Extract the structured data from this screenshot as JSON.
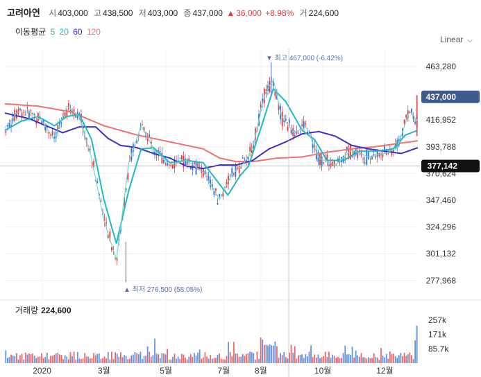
{
  "header": {
    "name": "고려아연",
    "open_label": "시",
    "open": "403,000",
    "high_label": "고",
    "high": "438,500",
    "low_label": "저",
    "low": "403,000",
    "close_label": "종",
    "close": "437,000",
    "change_arrow": "▲",
    "change": "36,000",
    "change_pct": "+8.98%",
    "volume_label": "거",
    "volume": "224,600"
  },
  "moving_average": {
    "label": "이동평균",
    "periods": [
      {
        "value": "5",
        "color": "#1fb8c4"
      },
      {
        "value": "20",
        "color": "#1fb8c4"
      },
      {
        "value": "60",
        "color": "#3b2fc4"
      },
      {
        "value": "120",
        "color": "#f07070"
      }
    ]
  },
  "scale_button": {
    "label": "Linear",
    "icon": "chevron-down-icon"
  },
  "colors": {
    "up": "#e0393e",
    "down": "#2f6fd8",
    "ma5": "#7fd6c9",
    "ma20": "#1fb8c4",
    "ma60": "#3b2fc4",
    "ma120": "#f07070",
    "price_tag": "#3f5a8c"
  },
  "chart_data": {
    "type": "candlestick",
    "y_ticks": [
      "463,280",
      "416,952",
      "393,788",
      "370,624",
      "347,460",
      "324,296",
      "301,132",
      "277,968"
    ],
    "y_tick_values": [
      463280,
      416952,
      393788,
      370624,
      347460,
      324296,
      301132,
      277968
    ],
    "x_labels": [
      "2020",
      "3월",
      "5월",
      "7월",
      "8월",
      "10월",
      "12월"
    ],
    "last_price_tag": "437,000",
    "crosshair_tag": "377,142",
    "annotations": {
      "high": "▼ 최고 467,000 (-6.42%)",
      "low": "▲ 최저 276,500 (58.05%)"
    },
    "high_value": 467000,
    "low_value": 276500,
    "crosshair_value": 377142,
    "last_value": 437000,
    "volume": {
      "title": "거래량",
      "value": "224,600",
      "y_ticks": [
        "257k",
        "171k",
        "85.7k"
      ],
      "y_tick_values": [
        257000,
        171000,
        85700
      ]
    },
    "ma120_approx": [
      [
        0,
        431
      ],
      [
        0.08,
        429
      ],
      [
        0.16,
        424
      ],
      [
        0.24,
        412
      ],
      [
        0.32,
        404
      ],
      [
        0.4,
        398
      ],
      [
        0.48,
        392
      ],
      [
        0.52,
        384
      ],
      [
        0.56,
        381
      ],
      [
        0.6,
        381
      ],
      [
        0.66,
        384
      ],
      [
        0.72,
        385
      ],
      [
        0.78,
        389
      ],
      [
        0.84,
        392
      ],
      [
        0.9,
        394
      ],
      [
        0.96,
        397
      ],
      [
        1.0,
        399
      ]
    ],
    "ma60_approx": [
      [
        0,
        423
      ],
      [
        0.06,
        418
      ],
      [
        0.1,
        412
      ],
      [
        0.14,
        406
      ],
      [
        0.18,
        411
      ],
      [
        0.22,
        411
      ],
      [
        0.25,
        401
      ],
      [
        0.28,
        395
      ],
      [
        0.32,
        393
      ],
      [
        0.36,
        388
      ],
      [
        0.4,
        384
      ],
      [
        0.44,
        377
      ],
      [
        0.48,
        375
      ],
      [
        0.52,
        378
      ],
      [
        0.56,
        378
      ],
      [
        0.6,
        382
      ],
      [
        0.64,
        392
      ],
      [
        0.68,
        398
      ],
      [
        0.72,
        405
      ],
      [
        0.76,
        407
      ],
      [
        0.8,
        403
      ],
      [
        0.84,
        395
      ],
      [
        0.88,
        392
      ],
      [
        0.92,
        390
      ],
      [
        0.96,
        388
      ],
      [
        1.0,
        393
      ]
    ],
    "ma20_approx": [
      [
        0,
        408
      ],
      [
        0.04,
        416
      ],
      [
        0.08,
        420
      ],
      [
        0.12,
        412
      ],
      [
        0.15,
        420
      ],
      [
        0.18,
        422
      ],
      [
        0.21,
        400
      ],
      [
        0.24,
        348
      ],
      [
        0.27,
        310
      ],
      [
        0.3,
        356
      ],
      [
        0.33,
        392
      ],
      [
        0.36,
        393
      ],
      [
        0.4,
        380
      ],
      [
        0.44,
        382
      ],
      [
        0.48,
        380
      ],
      [
        0.51,
        366
      ],
      [
        0.54,
        352
      ],
      [
        0.57,
        369
      ],
      [
        0.59,
        377
      ],
      [
        0.62,
        410
      ],
      [
        0.65,
        444
      ],
      [
        0.68,
        433
      ],
      [
        0.72,
        408
      ],
      [
        0.75,
        400
      ],
      [
        0.78,
        382
      ],
      [
        0.82,
        382
      ],
      [
        0.86,
        390
      ],
      [
        0.9,
        390
      ],
      [
        0.94,
        392
      ],
      [
        0.97,
        404
      ],
      [
        1.0,
        408
      ]
    ],
    "ma5_approx": [
      [
        0,
        410
      ],
      [
        0.03,
        424
      ],
      [
        0.06,
        424
      ],
      [
        0.09,
        416
      ],
      [
        0.12,
        400
      ],
      [
        0.15,
        429
      ],
      [
        0.18,
        420
      ],
      [
        0.21,
        384
      ],
      [
        0.24,
        330
      ],
      [
        0.27,
        296
      ],
      [
        0.3,
        380
      ],
      [
        0.33,
        412
      ],
      [
        0.36,
        392
      ],
      [
        0.4,
        378
      ],
      [
        0.44,
        382
      ],
      [
        0.48,
        372
      ],
      [
        0.52,
        348
      ],
      [
        0.55,
        370
      ],
      [
        0.58,
        380
      ],
      [
        0.6,
        393
      ],
      [
        0.63,
        440
      ],
      [
        0.65,
        452
      ],
      [
        0.67,
        420
      ],
      [
        0.7,
        406
      ],
      [
        0.73,
        411
      ],
      [
        0.76,
        384
      ],
      [
        0.8,
        378
      ],
      [
        0.84,
        391
      ],
      [
        0.88,
        385
      ],
      [
        0.92,
        388
      ],
      [
        0.95,
        393
      ],
      [
        0.98,
        425
      ],
      [
        1.0,
        416
      ]
    ]
  }
}
